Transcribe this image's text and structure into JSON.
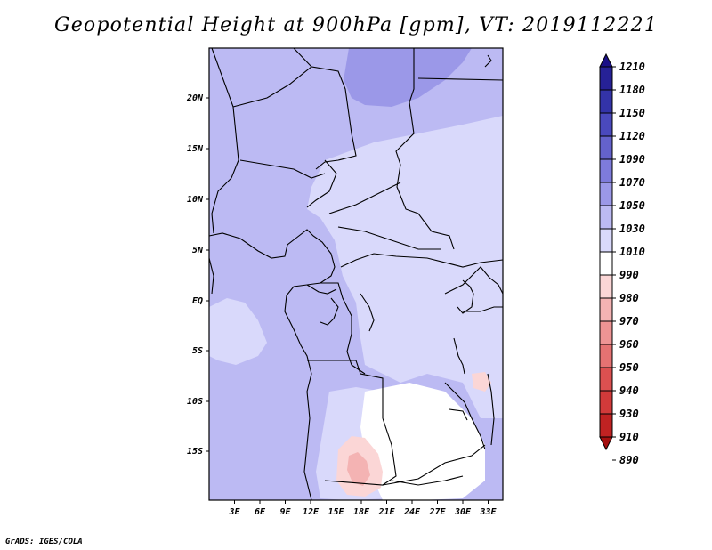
{
  "title": "Geopotential Height at 900hPa [gpm], VT: 2019112221",
  "credit": "GrADS: IGES/COLA",
  "lat_ticks": [
    "20N",
    "15N",
    "10N",
    "5N",
    "EQ",
    "5S",
    "10S",
    "15S"
  ],
  "lon_ticks": [
    "3E",
    "6E",
    "9E",
    "12E",
    "15E",
    "18E",
    "21E",
    "24E",
    "27E",
    "30E",
    "33E"
  ],
  "colorbar": {
    "labels": [
      "1210",
      "1180",
      "1150",
      "1120",
      "1090",
      "1070",
      "1050",
      "1030",
      "1010",
      "990",
      "980",
      "970",
      "960",
      "950",
      "940",
      "930",
      "910",
      "890"
    ],
    "colors": [
      "#1a0f87",
      "#262196",
      "#3333a8",
      "#4a49bd",
      "#6462cc",
      "#7e7bdb",
      "#9b98e8",
      "#bcbaf3",
      "#d9d9fb",
      "#ffffff",
      "#fbd6d6",
      "#f4b3b3",
      "#ee9494",
      "#e57272",
      "#dc5050",
      "#d23a3a",
      "#c02222",
      "#a50f0f"
    ]
  },
  "map": {
    "field": "Geopotential Height",
    "level": "900hPa",
    "units": "gpm",
    "valid_time": "2019112221",
    "colors": {
      "band_1050_1070": "#9b98e8",
      "band_1030_1050": "#bcbaf3",
      "band_1010_1030": "#d9d9fb",
      "band_990_1010": "#ffffff",
      "band_980_990": "#fbd6d6",
      "band_970_980": "#f4b3b3"
    }
  }
}
